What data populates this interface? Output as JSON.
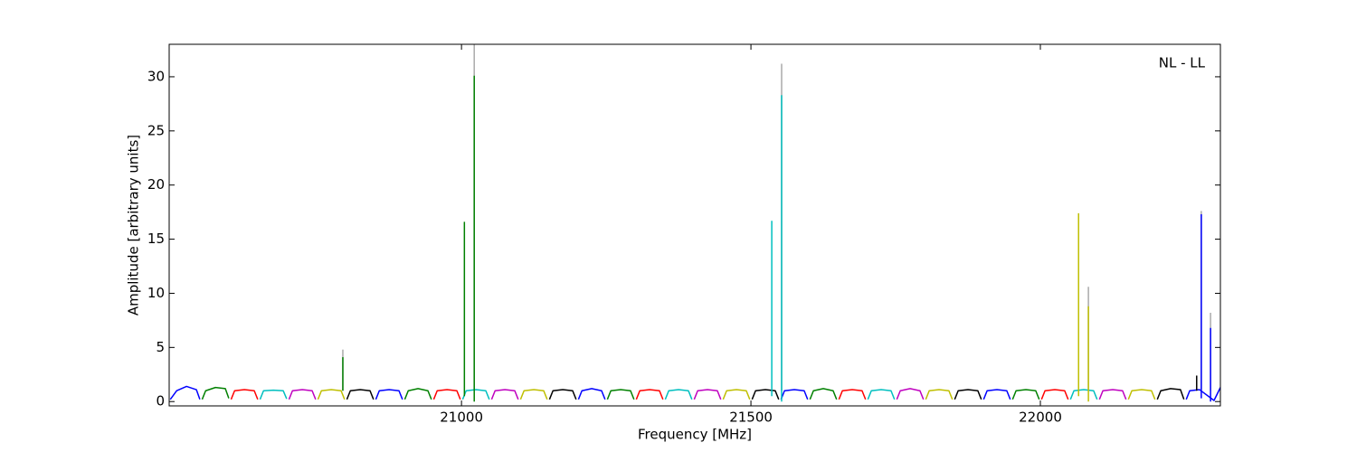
{
  "chart_data": {
    "type": "line",
    "xlabel": "Frequency [MHz]",
    "ylabel": "Amplitude [arbitrary units]",
    "annotation": "NL - LL",
    "xlim": [
      20495,
      22311
    ],
    "ylim": [
      -0.4,
      33
    ],
    "xticks": [
      21000,
      21500,
      22000
    ],
    "yticks": [
      0,
      5,
      10,
      15,
      20,
      25,
      30
    ],
    "grid": false,
    "series": [
      {
        "color": "#0000ff",
        "x": [
          20497,
          20508,
          20525,
          20542,
          20548
        ],
        "values": [
          0.2,
          1.0,
          1.4,
          1.1,
          0.2
        ]
      },
      {
        "color": "#008000",
        "x": [
          20552,
          20558,
          20575,
          20592,
          20598
        ],
        "values": [
          0.2,
          1.0,
          1.3,
          1.2,
          0.3
        ]
      },
      {
        "color": "#ff0000",
        "x": [
          20602,
          20608,
          20625,
          20642,
          20648
        ],
        "values": [
          0.2,
          1.0,
          1.1,
          1.0,
          0.2
        ]
      },
      {
        "color": "#00bfbf",
        "x": [
          20652,
          20658,
          20675,
          20692,
          20698
        ],
        "values": [
          0.2,
          1.0,
          1.05,
          1.0,
          0.25
        ]
      },
      {
        "color": "#bf00bf",
        "x": [
          20702,
          20708,
          20725,
          20742,
          20748
        ],
        "values": [
          0.2,
          1.0,
          1.1,
          1.0,
          0.2
        ]
      },
      {
        "color": "#bfbf00",
        "x": [
          20752,
          20758,
          20775,
          20792,
          20798
        ],
        "values": [
          0.2,
          1.0,
          1.1,
          1.0,
          0.2
        ]
      },
      {
        "color": "#000000",
        "x": [
          20802,
          20808,
          20825,
          20842,
          20848
        ],
        "values": [
          0.2,
          1.0,
          1.1,
          1.0,
          0.2
        ]
      },
      {
        "color": "#0000ff",
        "x": [
          20852,
          20858,
          20875,
          20892,
          20898
        ],
        "values": [
          0.2,
          1.0,
          1.1,
          1.0,
          0.2
        ]
      },
      {
        "color": "#008000",
        "x": [
          20902,
          20908,
          20925,
          20942,
          20948
        ],
        "values": [
          0.2,
          1.0,
          1.2,
          1.0,
          0.2
        ]
      },
      {
        "color": "#ff0000",
        "x": [
          20952,
          20958,
          20975,
          20992,
          20998
        ],
        "values": [
          0.2,
          1.0,
          1.1,
          1.0,
          0.2
        ]
      },
      {
        "color": "#00bfbf",
        "x": [
          21002,
          21008,
          21025,
          21042,
          21048
        ],
        "values": [
          0.2,
          1.0,
          1.1,
          1.0,
          0.2
        ]
      },
      {
        "color": "#bf00bf",
        "x": [
          21052,
          21058,
          21075,
          21092,
          21098
        ],
        "values": [
          0.2,
          1.0,
          1.1,
          1.0,
          0.2
        ]
      },
      {
        "color": "#bfbf00",
        "x": [
          21102,
          21108,
          21125,
          21142,
          21148
        ],
        "values": [
          0.2,
          1.0,
          1.1,
          1.0,
          0.2
        ]
      },
      {
        "color": "#000000",
        "x": [
          21152,
          21158,
          21175,
          21192,
          21198
        ],
        "values": [
          0.2,
          1.0,
          1.1,
          1.0,
          0.2
        ]
      },
      {
        "color": "#0000ff",
        "x": [
          21202,
          21208,
          21225,
          21242,
          21248
        ],
        "values": [
          0.2,
          1.0,
          1.2,
          1.0,
          0.2
        ]
      },
      {
        "color": "#008000",
        "x": [
          21252,
          21258,
          21275,
          21292,
          21298
        ],
        "values": [
          0.2,
          1.0,
          1.1,
          1.0,
          0.2
        ]
      },
      {
        "color": "#ff0000",
        "x": [
          21302,
          21308,
          21325,
          21342,
          21348
        ],
        "values": [
          0.2,
          1.0,
          1.1,
          1.0,
          0.2
        ]
      },
      {
        "color": "#00bfbf",
        "x": [
          21352,
          21358,
          21375,
          21392,
          21398
        ],
        "values": [
          0.2,
          1.0,
          1.1,
          1.0,
          0.2
        ]
      },
      {
        "color": "#bf00bf",
        "x": [
          21402,
          21408,
          21425,
          21442,
          21448
        ],
        "values": [
          0.2,
          1.0,
          1.1,
          1.0,
          0.2
        ]
      },
      {
        "color": "#bfbf00",
        "x": [
          21452,
          21458,
          21475,
          21492,
          21498
        ],
        "values": [
          0.2,
          1.0,
          1.1,
          1.0,
          0.2
        ]
      },
      {
        "color": "#000000",
        "x": [
          21502,
          21508,
          21525,
          21542,
          21548
        ],
        "values": [
          0.2,
          1.0,
          1.1,
          1.0,
          0.2
        ]
      },
      {
        "color": "#0000ff",
        "x": [
          21552,
          21558,
          21575,
          21592,
          21598
        ],
        "values": [
          0.2,
          1.0,
          1.1,
          1.0,
          0.2
        ]
      },
      {
        "color": "#008000",
        "x": [
          21602,
          21608,
          21625,
          21642,
          21648
        ],
        "values": [
          0.2,
          1.0,
          1.2,
          1.0,
          0.2
        ]
      },
      {
        "color": "#ff0000",
        "x": [
          21652,
          21658,
          21675,
          21692,
          21698
        ],
        "values": [
          0.2,
          1.0,
          1.1,
          1.0,
          0.2
        ]
      },
      {
        "color": "#00bfbf",
        "x": [
          21702,
          21708,
          21725,
          21742,
          21748
        ],
        "values": [
          0.2,
          1.0,
          1.1,
          1.0,
          0.2
        ]
      },
      {
        "color": "#bf00bf",
        "x": [
          21752,
          21758,
          21775,
          21792,
          21798
        ],
        "values": [
          0.2,
          1.0,
          1.2,
          1.0,
          0.2
        ]
      },
      {
        "color": "#bfbf00",
        "x": [
          21802,
          21808,
          21825,
          21842,
          21848
        ],
        "values": [
          0.2,
          1.0,
          1.1,
          1.0,
          0.2
        ]
      },
      {
        "color": "#000000",
        "x": [
          21852,
          21858,
          21875,
          21892,
          21898
        ],
        "values": [
          0.2,
          1.0,
          1.1,
          1.0,
          0.2
        ]
      },
      {
        "color": "#0000ff",
        "x": [
          21902,
          21908,
          21925,
          21942,
          21948
        ],
        "values": [
          0.2,
          1.0,
          1.1,
          1.0,
          0.2
        ]
      },
      {
        "color": "#008000",
        "x": [
          21952,
          21958,
          21975,
          21992,
          21998
        ],
        "values": [
          0.2,
          1.0,
          1.1,
          1.0,
          0.2
        ]
      },
      {
        "color": "#ff0000",
        "x": [
          22002,
          22008,
          22025,
          22042,
          22048
        ],
        "values": [
          0.2,
          1.0,
          1.1,
          1.0,
          0.2
        ]
      },
      {
        "color": "#00bfbf",
        "x": [
          22052,
          22058,
          22075,
          22092,
          22098
        ],
        "values": [
          0.2,
          1.0,
          1.1,
          1.0,
          0.2
        ]
      },
      {
        "color": "#bf00bf",
        "x": [
          22102,
          22108,
          22125,
          22142,
          22148
        ],
        "values": [
          0.2,
          1.0,
          1.1,
          1.0,
          0.2
        ]
      },
      {
        "color": "#bfbf00",
        "x": [
          22152,
          22158,
          22175,
          22192,
          22198
        ],
        "values": [
          0.2,
          1.0,
          1.1,
          1.0,
          0.2
        ]
      },
      {
        "color": "#000000",
        "x": [
          22202,
          22208,
          22225,
          22242,
          22248
        ],
        "values": [
          0.2,
          1.0,
          1.2,
          1.1,
          0.2
        ]
      },
      {
        "color": "#0000ff",
        "x": [
          22252,
          22258,
          22275,
          22300,
          22311
        ],
        "values": [
          0.2,
          1.0,
          1.1,
          0.1,
          1.3
        ]
      },
      {
        "color": "#aaaaaa",
        "x": [
          20795,
          20795
        ],
        "values": [
          1,
          4.8
        ]
      },
      {
        "color": "#aaaaaa",
        "x": [
          21022,
          21022
        ],
        "values": [
          1,
          33
        ]
      },
      {
        "color": "#aaaaaa",
        "x": [
          21553,
          21553
        ],
        "values": [
          1,
          31.2
        ]
      },
      {
        "color": "#aaaaaa",
        "x": [
          22083,
          22083
        ],
        "values": [
          1,
          10.6
        ]
      },
      {
        "color": "#aaaaaa",
        "x": [
          22278,
          22278
        ],
        "values": [
          1,
          17.6
        ]
      },
      {
        "color": "#aaaaaa",
        "x": [
          22294,
          22294
        ],
        "values": [
          1,
          8.2
        ]
      },
      {
        "color": "#008000",
        "x": [
          20795,
          20795
        ],
        "values": [
          1,
          4.1
        ]
      },
      {
        "color": "#008000",
        "x": [
          21005,
          21005
        ],
        "values": [
          0.5,
          16.6
        ]
      },
      {
        "color": "#008000",
        "x": [
          21022,
          21022
        ],
        "values": [
          0,
          30.1
        ]
      },
      {
        "color": "#00bfbf",
        "x": [
          21536,
          21536
        ],
        "values": [
          0.5,
          16.7
        ]
      },
      {
        "color": "#00bfbf",
        "x": [
          21553,
          21553
        ],
        "values": [
          0,
          28.3
        ]
      },
      {
        "color": "#bfbf00",
        "x": [
          22066,
          22066
        ],
        "values": [
          0.5,
          17.4
        ]
      },
      {
        "color": "#bfbf00",
        "x": [
          22083,
          22083
        ],
        "values": [
          0,
          8.8
        ]
      },
      {
        "color": "#000000",
        "x": [
          22270,
          22270
        ],
        "values": [
          1,
          2.4
        ]
      },
      {
        "color": "#0000ff",
        "x": [
          22278,
          22278
        ],
        "values": [
          0.3,
          17.3
        ]
      },
      {
        "color": "#0000ff",
        "x": [
          22294,
          22294
        ],
        "values": [
          0,
          6.8
        ]
      }
    ]
  }
}
